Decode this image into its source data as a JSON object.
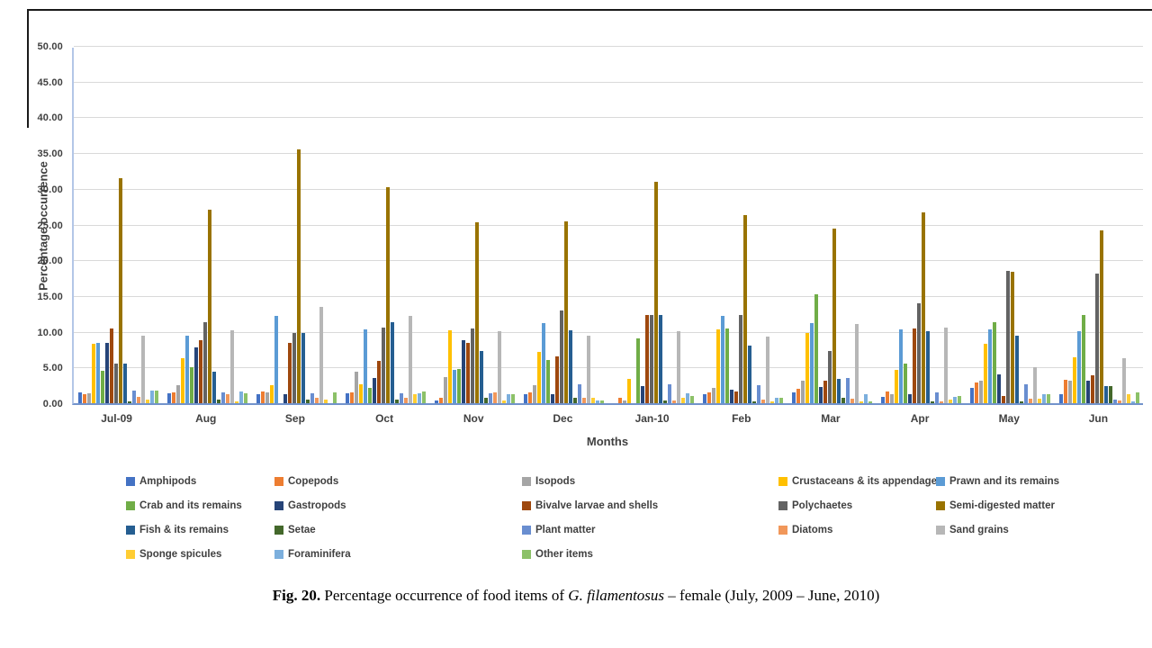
{
  "chart_data": {
    "type": "bar",
    "title": "",
    "xlabel": "Months",
    "ylabel": "Percentage occurrence",
    "ylim": [
      0,
      50
    ],
    "ytick_step": 5,
    "ytick_labels": [
      "0.00",
      "5.00",
      "10.00",
      "15.00",
      "20.00",
      "25.00",
      "30.00",
      "35.00",
      "40.00",
      "45.00",
      "50.00"
    ],
    "grid": "horizontal",
    "legend_position": "bottom",
    "categories": [
      "Jul-09",
      "Aug",
      "Sep",
      "Oct",
      "Nov",
      "Dec",
      "Jan-10",
      "Feb",
      "Mar",
      "Apr",
      "May",
      "Jun"
    ],
    "series": [
      {
        "name": "Amphipods",
        "color": "#4472C4",
        "values": [
          1.5,
          1.4,
          1.3,
          1.4,
          0.4,
          1.2,
          0.0,
          1.3,
          1.5,
          0.9,
          2.1,
          1.2
        ]
      },
      {
        "name": "Copepods",
        "color": "#ED7D31",
        "values": [
          1.3,
          1.5,
          1.6,
          1.5,
          0.7,
          1.5,
          0.8,
          1.5,
          2.0,
          1.6,
          2.9,
          3.3
        ]
      },
      {
        "name": "Isopods",
        "color": "#A5A5A5",
        "values": [
          1.4,
          2.5,
          1.5,
          4.4,
          3.6,
          2.5,
          0.4,
          2.2,
          3.2,
          1.3,
          3.1,
          3.2
        ]
      },
      {
        "name": "Crustaceans & its appendages",
        "color": "#FFC000",
        "values": [
          8.3,
          6.3,
          2.5,
          2.6,
          10.2,
          7.2,
          3.4,
          10.3,
          9.8,
          4.7,
          8.3,
          6.4
        ]
      },
      {
        "name": "Prawn and its remains",
        "color": "#5B9BD5",
        "values": [
          8.4,
          9.4,
          12.2,
          10.3,
          4.6,
          11.2,
          0.0,
          12.2,
          11.2,
          10.3,
          10.3,
          10.1
        ]
      },
      {
        "name": "Crab and its remains",
        "color": "#70AD47",
        "values": [
          4.5,
          5.0,
          0.0,
          2.1,
          4.8,
          6.1,
          9.1,
          10.5,
          15.3,
          5.5,
          11.3,
          12.3
        ]
      },
      {
        "name": "Gastropods",
        "color": "#264478",
        "values": [
          8.5,
          7.8,
          1.2,
          3.5,
          8.8,
          1.2,
          2.4,
          1.9,
          2.3,
          1.2,
          4.0,
          3.2
        ]
      },
      {
        "name": "Bivalve larvae and shells",
        "color": "#9E480E",
        "values": [
          10.4,
          8.8,
          8.5,
          5.9,
          8.5,
          6.5,
          12.3,
          1.6,
          3.2,
          10.5,
          1.0,
          3.9
        ]
      },
      {
        "name": "Polychaetes",
        "color": "#636363",
        "values": [
          5.5,
          11.3,
          9.8,
          10.6,
          10.4,
          13.0,
          12.3,
          12.3,
          7.3,
          14.0,
          18.5,
          18.1
        ]
      },
      {
        "name": "Semi-digested matter",
        "color": "#997300",
        "values": [
          31.5,
          27.1,
          35.5,
          30.2,
          25.3,
          25.5,
          31.0,
          26.3,
          24.4,
          26.7,
          18.4,
          24.2
        ]
      },
      {
        "name": "Fish & its remains",
        "color": "#255E91",
        "values": [
          5.5,
          4.4,
          9.8,
          11.3,
          7.3,
          10.2,
          12.4,
          8.0,
          3.4,
          10.1,
          9.4,
          2.4
        ]
      },
      {
        "name": "Setae",
        "color": "#43682B",
        "values": [
          0.3,
          0.5,
          0.5,
          0.5,
          0.8,
          0.8,
          0.4,
          0.3,
          0.8,
          0.3,
          0.2,
          2.4
        ]
      },
      {
        "name": "Plant matter",
        "color": "#698ED0",
        "values": [
          1.8,
          1.5,
          1.4,
          1.4,
          1.4,
          2.6,
          2.6,
          2.5,
          3.5,
          1.5,
          2.6,
          0.5
        ]
      },
      {
        "name": "Diatoms",
        "color": "#F1975A",
        "values": [
          0.9,
          1.2,
          0.8,
          0.8,
          1.5,
          0.7,
          0.4,
          0.5,
          0.6,
          0.3,
          0.6,
          0.4
        ]
      },
      {
        "name": "Sand grains",
        "color": "#B7B7B7",
        "values": [
          9.4,
          10.2,
          13.5,
          12.2,
          10.1,
          9.5,
          10.1,
          9.3,
          11.1,
          10.6,
          5.0,
          6.3
        ]
      },
      {
        "name": "Sponge spicules",
        "color": "#FFCD33",
        "values": [
          0.5,
          0.2,
          0.5,
          1.2,
          0.4,
          0.7,
          0.8,
          0.2,
          0.3,
          0.5,
          0.6,
          1.3
        ]
      },
      {
        "name": "Foraminifera",
        "color": "#7CAFDD",
        "values": [
          1.8,
          1.6,
          0.0,
          1.4,
          1.3,
          0.4,
          1.4,
          0.7,
          1.2,
          0.9,
          1.2,
          0.2
        ]
      },
      {
        "name": "Other items",
        "color": "#8CC168",
        "values": [
          1.8,
          1.4,
          1.5,
          1.7,
          1.3,
          0.4,
          1.0,
          0.7,
          0.3,
          1.0,
          1.2,
          1.5
        ]
      }
    ]
  },
  "caption": {
    "prefix": "Fig. 20.",
    "text1": " Percentage occurrence of food items of ",
    "species": "G. filamentosus",
    "text2": " – female (July, 2009 – June, 2010)"
  }
}
